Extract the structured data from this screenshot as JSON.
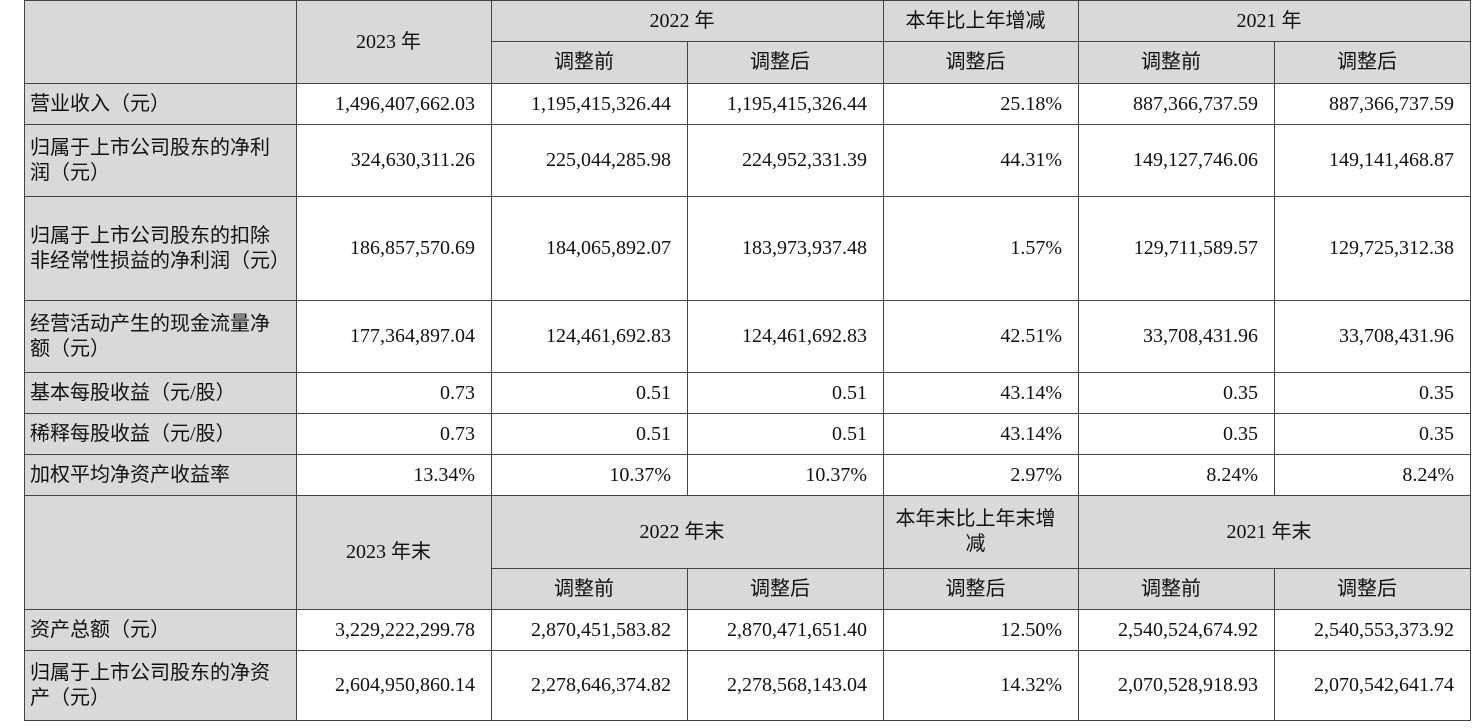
{
  "section1": {
    "year_current": "2023 年",
    "year_prev": "2022 年",
    "change_header": "本年比上年增减",
    "year_prev2": "2021 年",
    "sub_before": "调整前",
    "sub_after": "调整后",
    "rows": [
      {
        "label": "营业收入（元）",
        "values": [
          "1,496,407,662.03",
          "1,195,415,326.44",
          "1,195,415,326.44",
          "25.18%",
          "887,366,737.59",
          "887,366,737.59"
        ]
      },
      {
        "label": "归属于上市公司股东的净利润（元）",
        "values": [
          "324,630,311.26",
          "225,044,285.98",
          "224,952,331.39",
          "44.31%",
          "149,127,746.06",
          "149,141,468.87"
        ]
      },
      {
        "label": "归属于上市公司股东的扣除非经常性损益的净利润（元）",
        "values": [
          "186,857,570.69",
          "184,065,892.07",
          "183,973,937.48",
          "1.57%",
          "129,711,589.57",
          "129,725,312.38"
        ]
      },
      {
        "label": "经营活动产生的现金流量净额（元）",
        "values": [
          "177,364,897.04",
          "124,461,692.83",
          "124,461,692.83",
          "42.51%",
          "33,708,431.96",
          "33,708,431.96"
        ]
      },
      {
        "label": "基本每股收益（元/股）",
        "values": [
          "0.73",
          "0.51",
          "0.51",
          "43.14%",
          "0.35",
          "0.35"
        ]
      },
      {
        "label": "稀释每股收益（元/股）",
        "values": [
          "0.73",
          "0.51",
          "0.51",
          "43.14%",
          "0.35",
          "0.35"
        ]
      },
      {
        "label": "加权平均净资产收益率",
        "values": [
          "13.34%",
          "10.37%",
          "10.37%",
          "2.97%",
          "8.24%",
          "8.24%"
        ]
      }
    ]
  },
  "section2": {
    "year_current": "2023 年末",
    "year_prev": "2022 年末",
    "change_header": "本年末比上年末增减",
    "year_prev2": "2021 年末",
    "sub_before": "调整前",
    "sub_after": "调整后",
    "rows": [
      {
        "label": "资产总额（元）",
        "values": [
          "3,229,222,299.78",
          "2,870,451,583.82",
          "2,870,471,651.40",
          "12.50%",
          "2,540,524,674.92",
          "2,540,553,373.92"
        ]
      },
      {
        "label": "归属于上市公司股东的净资产（元）",
        "values": [
          "2,604,950,860.14",
          "2,278,646,374.82",
          "2,278,568,143.04",
          "14.32%",
          "2,070,528,918.93",
          "2,070,542,641.74"
        ]
      }
    ]
  }
}
